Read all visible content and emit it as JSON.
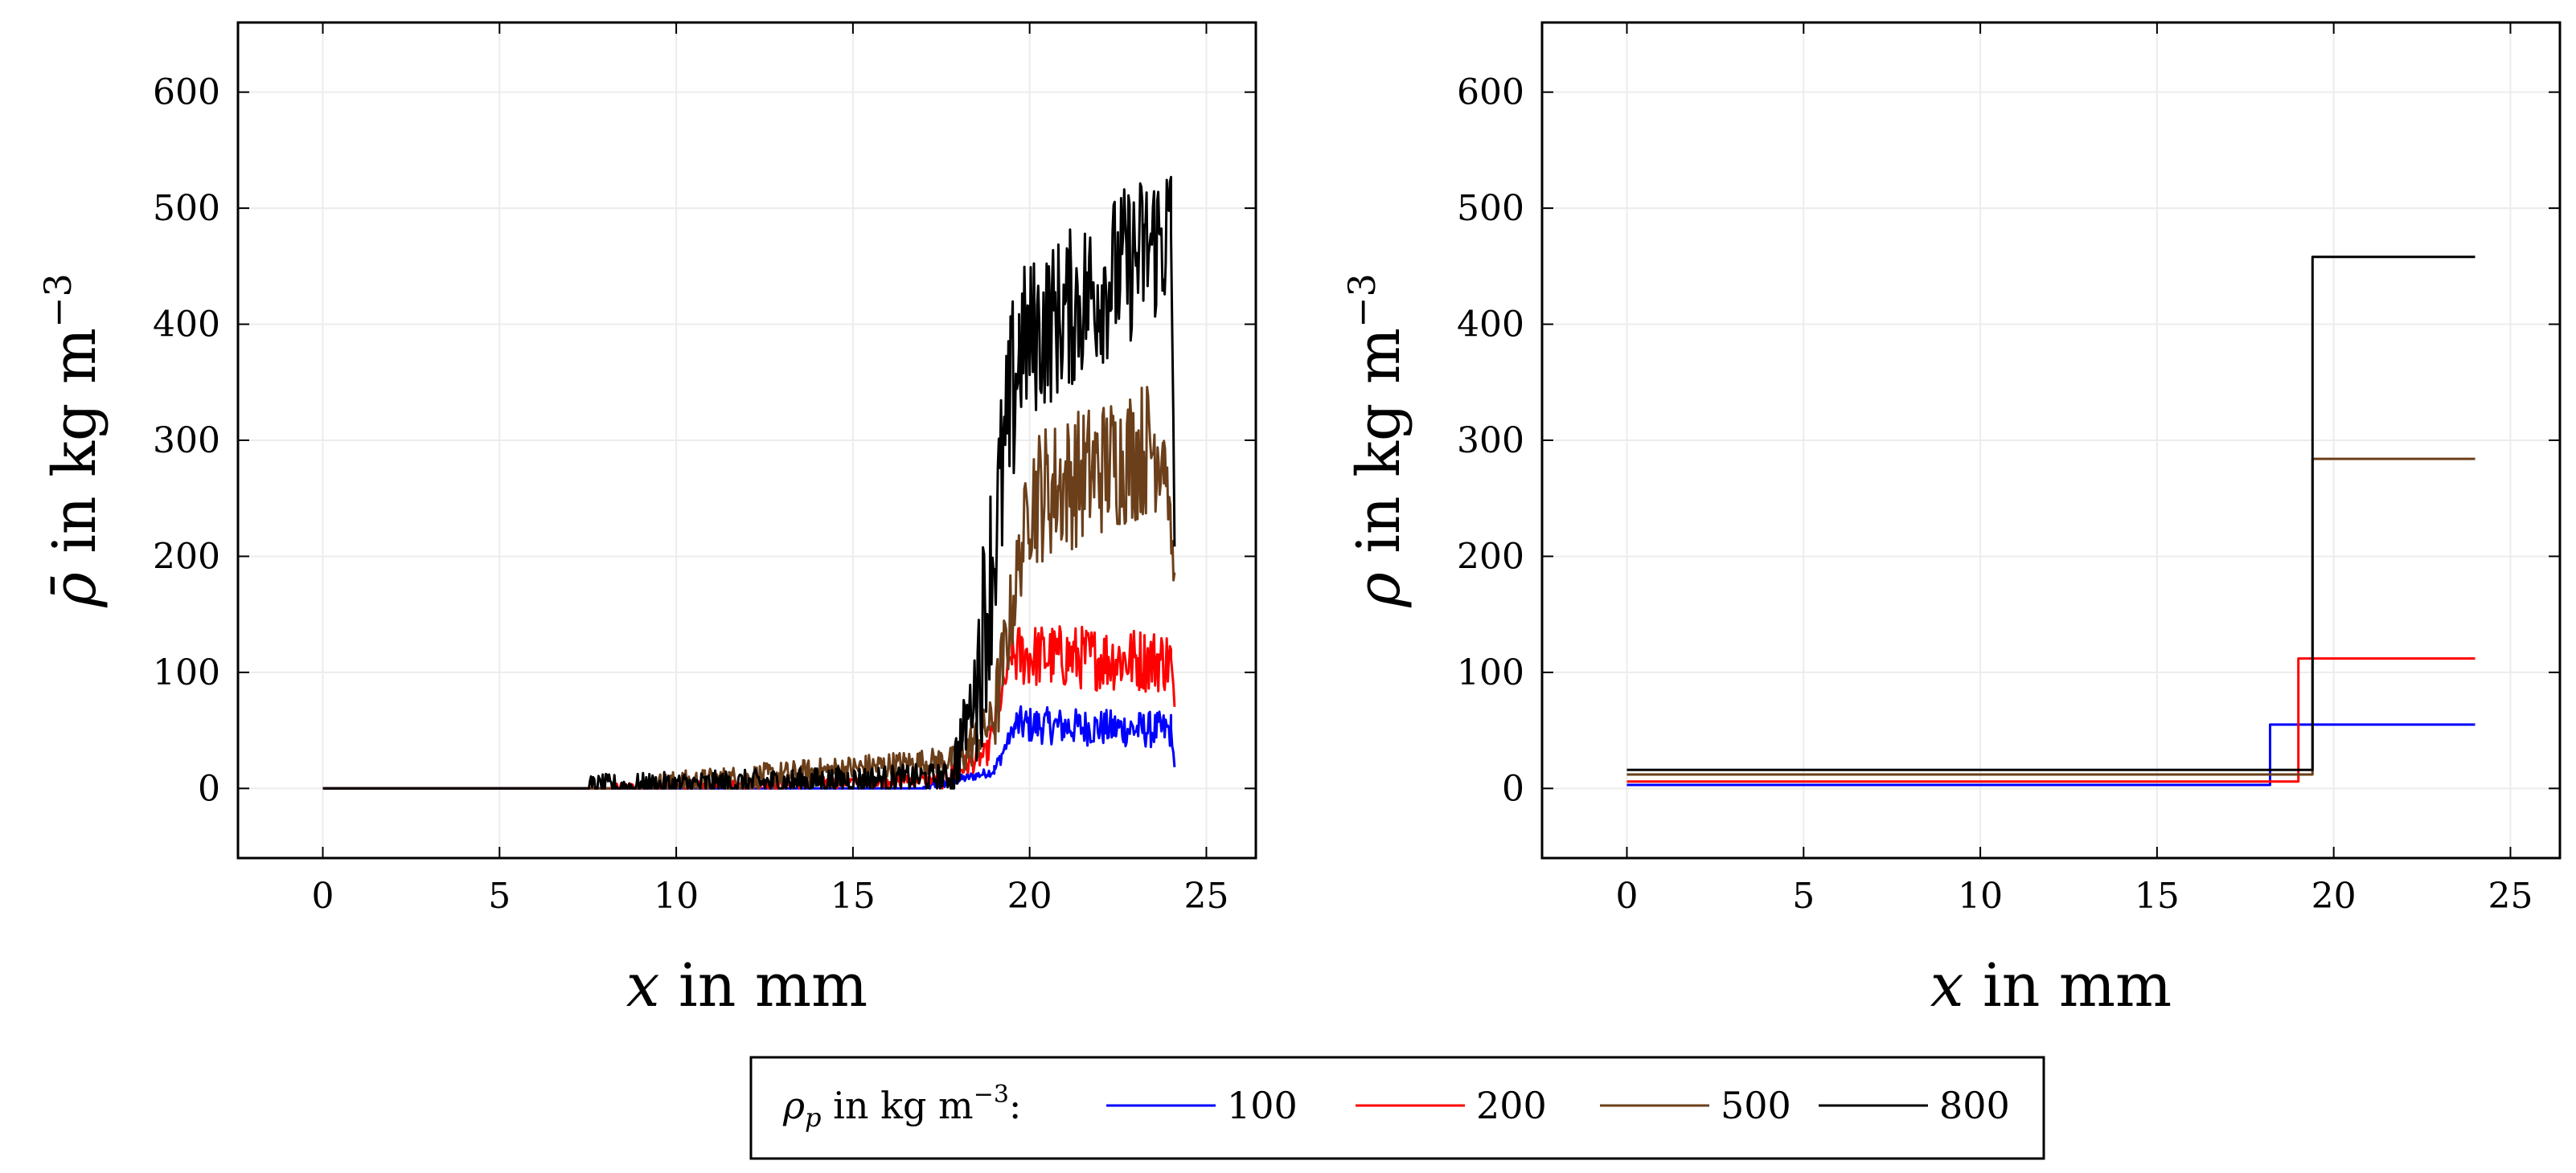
{
  "chart_data": [
    {
      "type": "line",
      "panel": "left",
      "xlabel": "x in mm",
      "ylabel": "ρ̄ in kg m⁻³",
      "xlim": [
        -2.4,
        26.4
      ],
      "ylim": [
        -60,
        660
      ],
      "xticks": [
        "0",
        "5",
        "10",
        "15",
        "20",
        "25"
      ],
      "yticks": [
        "0",
        "100",
        "200",
        "300",
        "400",
        "500",
        "600"
      ],
      "grid": true,
      "series": [
        {
          "name": "100",
          "color": "#0000ff",
          "segments": [
            [
              0,
              0,
              17.0,
              0,
              1
            ],
            [
              17.0,
              0,
              19.0,
              15,
              4
            ],
            [
              19.0,
              15,
              19.6,
              55,
              7
            ],
            [
              19.6,
              55,
              24,
              50,
              16
            ],
            [
              24,
              50,
              24.1,
              20,
              4
            ]
          ]
        },
        {
          "name": "200",
          "color": "#ff0000",
          "segments": [
            [
              0,
              0,
              8.2,
              0,
              1
            ],
            [
              8.2,
              0,
              17.5,
              8,
              5
            ],
            [
              17.5,
              8,
              18.8,
              30,
              10
            ],
            [
              18.8,
              30,
              19.5,
              115,
              12
            ],
            [
              19.5,
              115,
              24,
              110,
              28
            ],
            [
              24,
              110,
              24.1,
              70,
              8
            ]
          ]
        },
        {
          "name": "500",
          "color": "#6b3f1a",
          "segments": [
            [
              0,
              0,
              8.8,
              0,
              1
            ],
            [
              8.8,
              0,
              18.0,
              25,
              12
            ],
            [
              18.0,
              25,
              19.0,
              60,
              20
            ],
            [
              19.0,
              60,
              20.0,
              250,
              40
            ],
            [
              20.0,
              250,
              23.8,
              300,
              60
            ],
            [
              23.8,
              300,
              24.1,
              175,
              20
            ]
          ]
        },
        {
          "name": "800",
          "color": "#000000",
          "segments": [
            [
              0,
              0,
              7.5,
              0,
              1
            ],
            [
              7.5,
              0,
              17.8,
              10,
              12
            ],
            [
              17.8,
              10,
              18.5,
              90,
              30
            ],
            [
              18.5,
              90,
              19.7,
              380,
              90
            ],
            [
              19.7,
              380,
              24,
              480,
              70
            ],
            [
              24,
              480,
              24.1,
              230,
              40
            ]
          ]
        }
      ]
    },
    {
      "type": "line",
      "panel": "right",
      "xlabel": "x in mm",
      "ylabel": "ρ in kg m⁻³",
      "xlim": [
        -2.4,
        26.4
      ],
      "ylim": [
        -60,
        660
      ],
      "xticks": [
        "0",
        "5",
        "10",
        "15",
        "20",
        "25"
      ],
      "yticks": [
        "0",
        "100",
        "200",
        "300",
        "400",
        "500",
        "600"
      ],
      "grid": true,
      "series": [
        {
          "name": "100",
          "color": "#0000ff",
          "x": [
            0,
            18.2,
            18.2,
            24
          ],
          "y": [
            3,
            3,
            55,
            55
          ]
        },
        {
          "name": "200",
          "color": "#ff0000",
          "x": [
            0,
            19.0,
            19.0,
            24
          ],
          "y": [
            6,
            6,
            112,
            112
          ]
        },
        {
          "name": "500",
          "color": "#6b3f1a",
          "x": [
            0,
            19.4,
            19.4,
            24
          ],
          "y": [
            12,
            12,
            284,
            284
          ]
        },
        {
          "name": "800",
          "color": "#000000",
          "x": [
            0,
            19.4,
            19.4,
            24
          ],
          "y": [
            16,
            16,
            458,
            458
          ]
        }
      ]
    }
  ],
  "legend": {
    "title": "ρp in kg m⁻³:",
    "entries": [
      "100",
      "200",
      "500",
      "800"
    ]
  }
}
